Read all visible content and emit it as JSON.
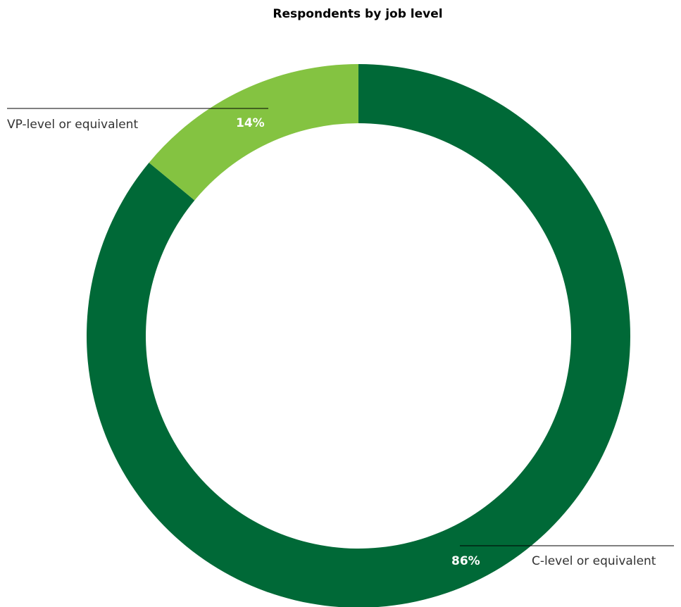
{
  "chart_data": {
    "type": "pie",
    "title": "Respondents by job level",
    "donut": true,
    "slices": [
      {
        "label": "C-level or equivalent",
        "value": 86,
        "value_label": "86%",
        "color": "#006937"
      },
      {
        "label": "VP-level or equivalent",
        "value": 14,
        "value_label": "14%",
        "color": "#84c341"
      }
    ]
  }
}
